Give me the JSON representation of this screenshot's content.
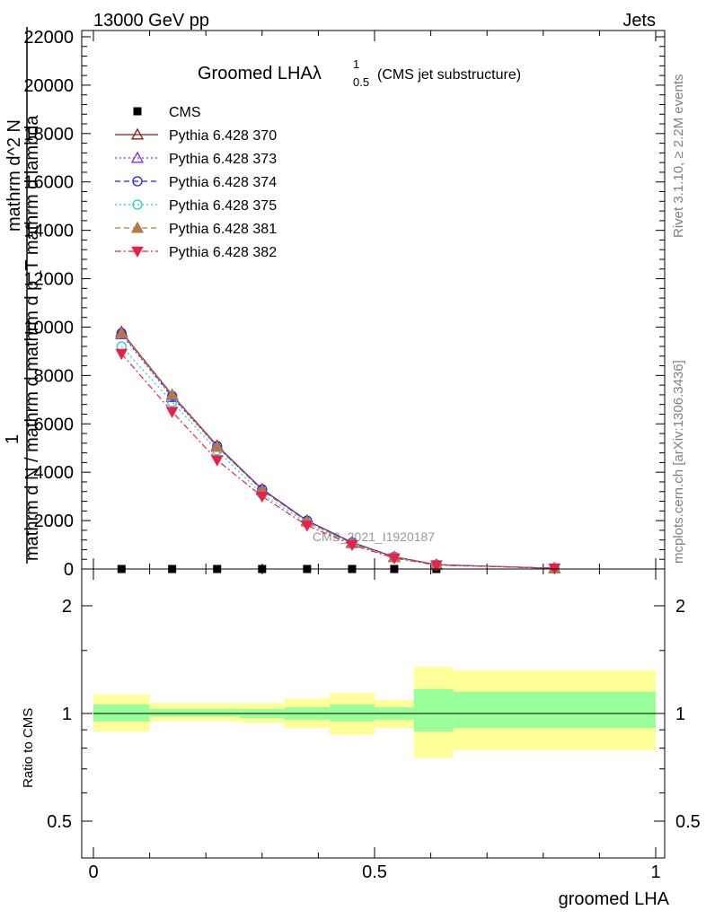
{
  "header": {
    "left": "13000 GeV pp",
    "right": "Jets"
  },
  "side_labels": {
    "rivet": "Rivet 3.1.10, ≥ 2.2M events",
    "mcplots": "mcplots.cern.ch [arXiv:1306.3436]"
  },
  "watermark": "CMS_2021_I1920187",
  "title": {
    "main": "Groomed LHAλ",
    "sup": "1",
    "sub": "0.5",
    "suffix": "(CMS jet substructure)"
  },
  "ylabel_top": {
    "numerator_one": "1",
    "denominator": "mathrm d N / mathrm d mathrm d p_T mathrm d lambda",
    "numerator_frac": "mathrm d^2 N"
  },
  "ylabel_ratio": "Ratio to CMS",
  "xlabel": "groomed LHA",
  "colors": {
    "cms": "#000000",
    "s370": "#8b1a1a",
    "s373": "#8a2be2",
    "s374": "#1e1ee8",
    "s375": "#20d0c0",
    "s381": "#b07a4a",
    "s382": "#e8204a",
    "band_inner": "#99ff99",
    "band_outer": "#ffff99"
  },
  "chart_data": [
    {
      "type": "line",
      "panel": "main",
      "x": [
        0.05,
        0.14,
        0.22,
        0.3,
        0.38,
        0.46,
        0.535,
        0.61,
        0.82
      ],
      "xlim": [
        0,
        1
      ],
      "ylim": [
        0,
        22000
      ],
      "yticks": [
        0,
        2000,
        4000,
        6000,
        8000,
        10000,
        12000,
        14000,
        16000,
        18000,
        20000,
        22000
      ],
      "ytick_labels": [
        "0",
        "2000",
        "4000",
        "6000",
        "8000",
        "10000",
        "12000",
        "14000",
        "16000",
        "18000",
        "20000",
        "22000"
      ],
      "legend_position": "top-left",
      "series": [
        {
          "name": "CMS",
          "marker": "square",
          "dash": "none",
          "color_key": "cms",
          "values": [
            0,
            0,
            0,
            0,
            0,
            0,
            0,
            0,
            0
          ]
        },
        {
          "name": "Pythia 6.428 370",
          "marker": "triangle-open",
          "dash": "solid",
          "color_key": "s370",
          "values": [
            9800,
            7200,
            5100,
            3300,
            2000,
            1100,
            500,
            180,
            30
          ]
        },
        {
          "name": "Pythia 6.428 373",
          "marker": "triangle-open",
          "dash": "dotted",
          "color_key": "s373",
          "values": [
            9700,
            7100,
            5050,
            3280,
            1990,
            1090,
            490,
            175,
            30
          ]
        },
        {
          "name": "Pythia 6.428 374",
          "marker": "circle-open",
          "dash": "dashed",
          "color_key": "s374",
          "values": [
            9750,
            7150,
            5080,
            3290,
            2000,
            1090,
            500,
            180,
            30
          ]
        },
        {
          "name": "Pythia 6.428 375",
          "marker": "circle-open",
          "dash": "dotted",
          "color_key": "s375",
          "values": [
            9200,
            6900,
            4900,
            3100,
            1900,
            1050,
            480,
            175,
            30
          ]
        },
        {
          "name": "Pythia 6.428 381",
          "marker": "triangle-filled",
          "dash": "dashed",
          "color_key": "s381",
          "values": [
            9750,
            7200,
            5050,
            3250,
            1960,
            1060,
            480,
            170,
            30
          ]
        },
        {
          "name": "Pythia 6.428 382",
          "marker": "triangle-down-filled",
          "dash": "dashdot",
          "color_key": "s382",
          "values": [
            8900,
            6500,
            4500,
            3000,
            1800,
            1000,
            450,
            160,
            30
          ]
        }
      ]
    },
    {
      "type": "area",
      "panel": "ratio",
      "ylabel": "Ratio to CMS",
      "xlim": [
        0,
        1
      ],
      "ylim": [
        0.4,
        2.4
      ],
      "scale": "log",
      "yticks": [
        0.5,
        1,
        2
      ],
      "ytick_labels": [
        "0.5",
        "1",
        "2"
      ],
      "xticks": [
        0,
        0.5,
        1
      ],
      "xtick_labels": [
        "0",
        "0.5",
        "1"
      ],
      "bins": [
        {
          "x0": 0.0,
          "x1": 0.1,
          "inner": [
            0.95,
            1.06
          ],
          "outer": [
            0.89,
            1.13
          ]
        },
        {
          "x0": 0.1,
          "x1": 0.26,
          "inner": [
            0.98,
            1.03
          ],
          "outer": [
            0.95,
            1.07
          ]
        },
        {
          "x0": 0.26,
          "x1": 0.34,
          "inner": [
            0.97,
            1.03
          ],
          "outer": [
            0.94,
            1.07
          ]
        },
        {
          "x0": 0.34,
          "x1": 0.42,
          "inner": [
            0.96,
            1.04
          ],
          "outer": [
            0.91,
            1.1
          ]
        },
        {
          "x0": 0.42,
          "x1": 0.5,
          "inner": [
            0.95,
            1.06
          ],
          "outer": [
            0.87,
            1.14
          ]
        },
        {
          "x0": 0.5,
          "x1": 0.57,
          "inner": [
            0.96,
            1.04
          ],
          "outer": [
            0.91,
            1.09
          ]
        },
        {
          "x0": 0.57,
          "x1": 0.64,
          "inner": [
            0.89,
            1.17
          ],
          "outer": [
            0.75,
            1.35
          ]
        },
        {
          "x0": 0.64,
          "x1": 1.0,
          "inner": [
            0.91,
            1.15
          ],
          "outer": [
            0.79,
            1.32
          ]
        }
      ]
    }
  ]
}
